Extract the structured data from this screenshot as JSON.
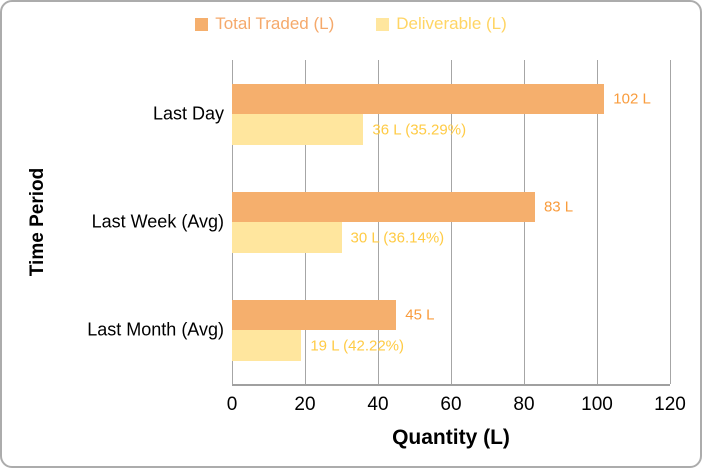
{
  "chart_data": {
    "type": "bar",
    "orientation": "horizontal",
    "title": "",
    "categories": [
      "Last Day",
      "Last Week (Avg)",
      "Last Month (Avg)"
    ],
    "series": [
      {
        "name": "Total Traded (L)",
        "values": [
          102,
          83,
          45
        ],
        "value_labels": [
          "102 L",
          "83 L",
          "45 L"
        ],
        "bar_color": "#F5AF6D",
        "label_color": "#F99C3D",
        "legend_text_color": "#F5A96B"
      },
      {
        "name": "Deliverable (L)",
        "values": [
          36,
          30,
          19
        ],
        "value_labels": [
          "36 L (35.29%)",
          "30 L (36.14%)",
          "19 L (42.22%)"
        ],
        "bar_color": "#FFE69E",
        "label_color": "#FFCB45",
        "legend_text_color": "#FFD564"
      }
    ],
    "xlabel": "Quantity (L)",
    "ylabel": "Time Period",
    "xlim": [
      0,
      120
    ],
    "xticks": [
      "0",
      "20",
      "40",
      "60",
      "80",
      "100",
      "120"
    ],
    "grid": true,
    "legend_position": "top"
  },
  "colors": {
    "gridline": "#A6A6A6",
    "axis_line": "#A0A0A0",
    "card_border": "#ACACAC",
    "background": "#FFFFFF"
  }
}
